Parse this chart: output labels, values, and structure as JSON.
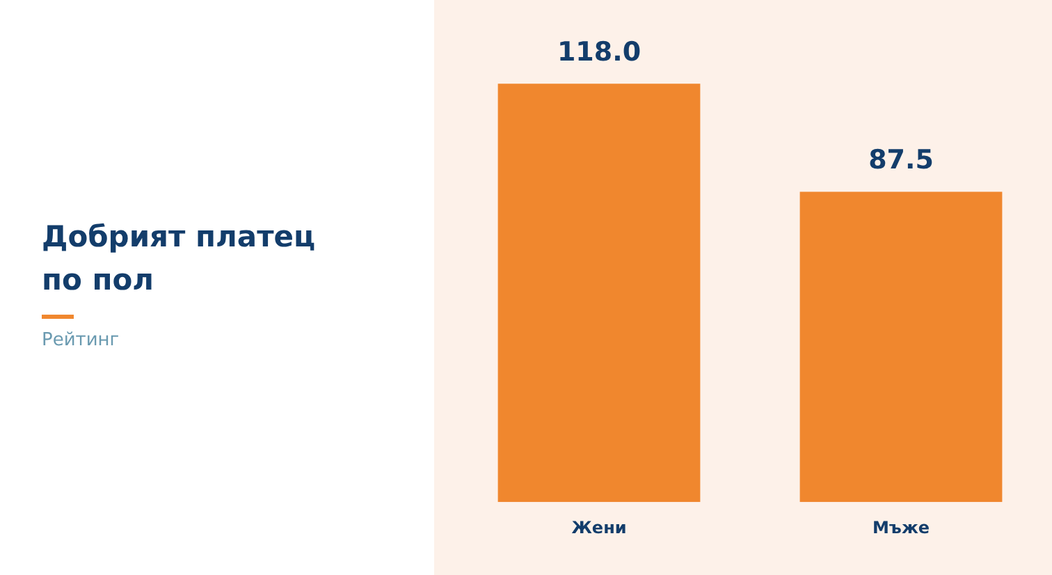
{
  "chart_data": {
    "type": "bar",
    "title": "Добрият платец по пол",
    "subtitle": "Рейтинг",
    "categories": [
      "Жени",
      "Мъже"
    ],
    "values": [
      118.0,
      87.5
    ],
    "value_labels": [
      "118.0",
      "87.5"
    ],
    "color": "#f0872e",
    "tick_labels": "x"
  }
}
